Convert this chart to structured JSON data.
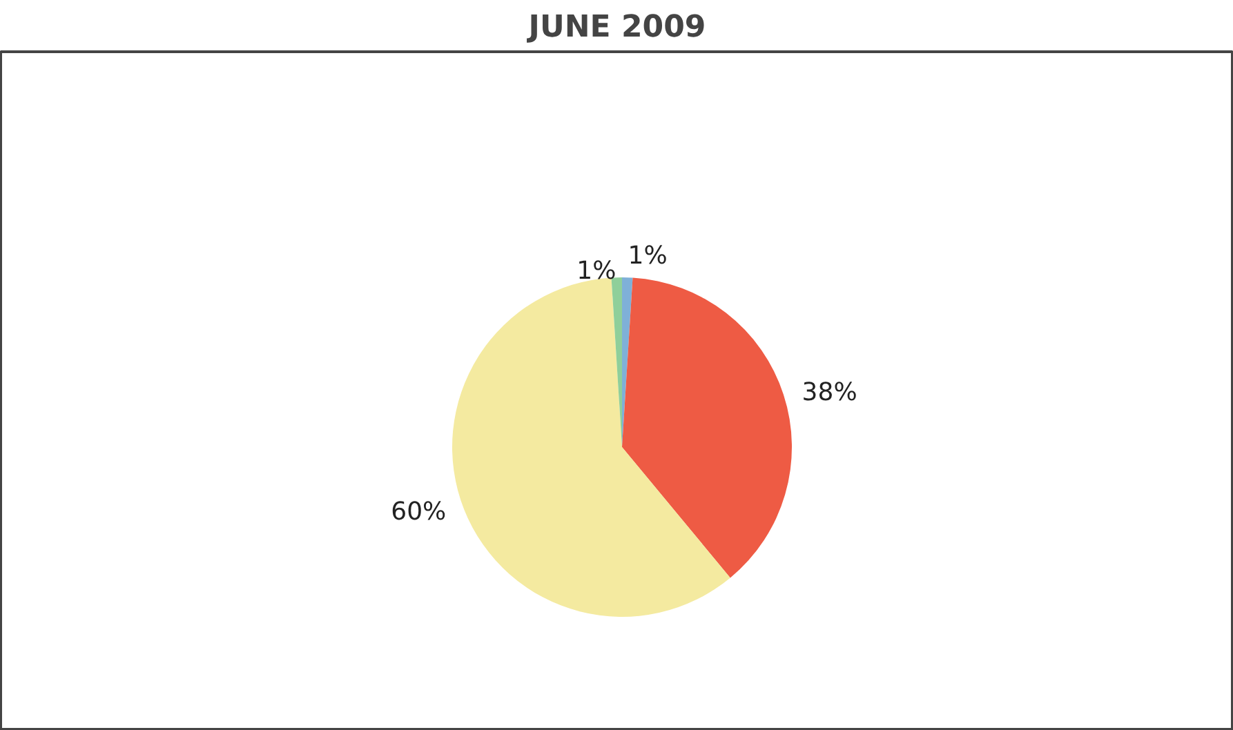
{
  "chart_data": {
    "type": "pie",
    "title": "JUNE 2009",
    "categories": [
      null,
      null,
      null,
      null
    ],
    "values": [
      1,
      38,
      60,
      1
    ],
    "colors": [
      "#7fb0d8",
      "#ee5b44",
      "#f4eaa0",
      "#8fcf9a"
    ],
    "value_labels": [
      "1%",
      "38%",
      "60%",
      "1%"
    ]
  }
}
